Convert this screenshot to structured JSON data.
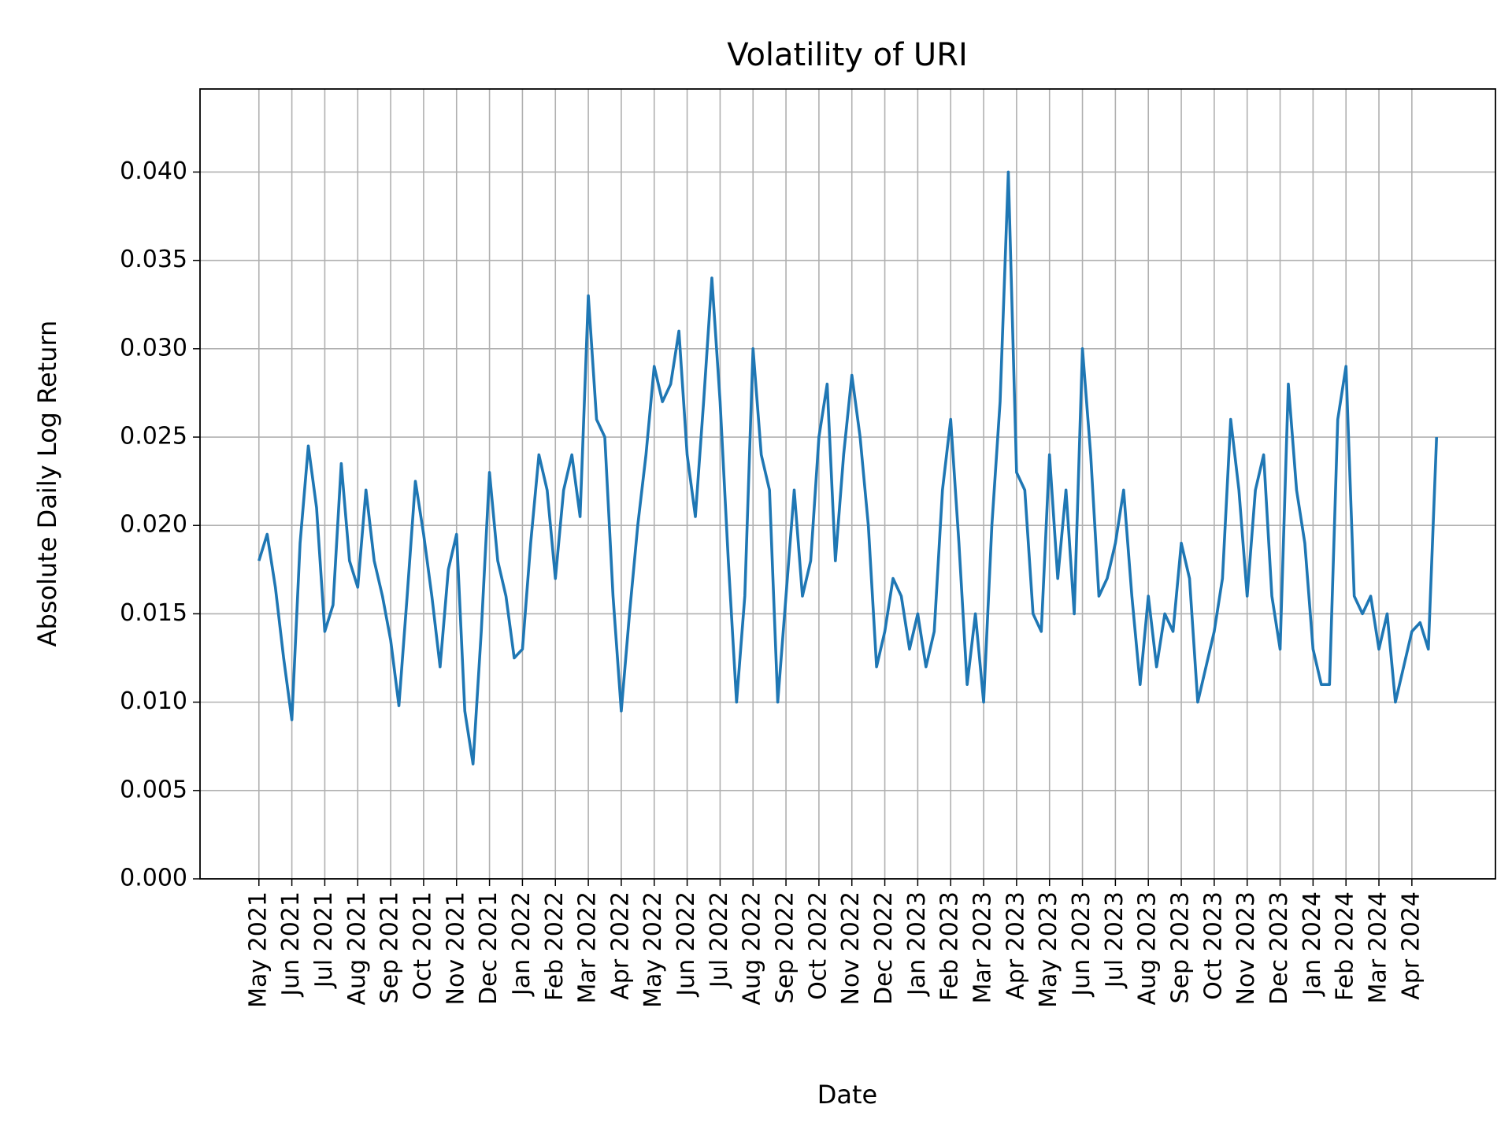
{
  "chart_data": {
    "type": "line",
    "title": "Volatility of URI",
    "x_label": "Date",
    "y_label": "Absolute Daily Log Return",
    "grid": true,
    "ylim": [
      0,
      0.0447
    ],
    "yticks": [
      {
        "value": 0,
        "label": "0.000"
      },
      {
        "value": 0.005,
        "label": "0.005"
      },
      {
        "value": 0.01,
        "label": "0.010"
      },
      {
        "value": 0.015,
        "label": "0.015"
      },
      {
        "value": 0.02,
        "label": "0.020"
      },
      {
        "value": 0.025,
        "label": "0.025"
      },
      {
        "value": 0.03,
        "label": "0.030"
      },
      {
        "value": 0.035,
        "label": "0.035"
      },
      {
        "value": 0.04,
        "label": "0.040"
      }
    ],
    "xticks": [
      {
        "value": "2021-05",
        "label": "May 2021"
      },
      {
        "value": "2021-06",
        "label": "Jun 2021"
      },
      {
        "value": "2021-07",
        "label": "Jul 2021"
      },
      {
        "value": "2021-08",
        "label": "Aug 2021"
      },
      {
        "value": "2021-09",
        "label": "Sep 2021"
      },
      {
        "value": "2021-10",
        "label": "Oct 2021"
      },
      {
        "value": "2021-11",
        "label": "Nov 2021"
      },
      {
        "value": "2021-12",
        "label": "Dec 2021"
      },
      {
        "value": "2022-01",
        "label": "Jan 2022"
      },
      {
        "value": "2022-02",
        "label": "Feb 2022"
      },
      {
        "value": "2022-03",
        "label": "Mar 2022"
      },
      {
        "value": "2022-04",
        "label": "Apr 2022"
      },
      {
        "value": "2022-05",
        "label": "May 2022"
      },
      {
        "value": "2022-06",
        "label": "Jun 2022"
      },
      {
        "value": "2022-07",
        "label": "Jul 2022"
      },
      {
        "value": "2022-08",
        "label": "Aug 2022"
      },
      {
        "value": "2022-09",
        "label": "Sep 2022"
      },
      {
        "value": "2022-10",
        "label": "Oct 2022"
      },
      {
        "value": "2022-11",
        "label": "Nov 2022"
      },
      {
        "value": "2022-12",
        "label": "Dec 2022"
      },
      {
        "value": "2023-01",
        "label": "Jan 2023"
      },
      {
        "value": "2023-02",
        "label": "Feb 2023"
      },
      {
        "value": "2023-03",
        "label": "Mar 2023"
      },
      {
        "value": "2023-04",
        "label": "Apr 2023"
      },
      {
        "value": "2023-05",
        "label": "May 2023"
      },
      {
        "value": "2023-06",
        "label": "Jun 2023"
      },
      {
        "value": "2023-07",
        "label": "Jul 2023"
      },
      {
        "value": "2023-08",
        "label": "Aug 2023"
      },
      {
        "value": "2023-09",
        "label": "Sep 2023"
      },
      {
        "value": "2023-10",
        "label": "Oct 2023"
      },
      {
        "value": "2023-11",
        "label": "Nov 2023"
      },
      {
        "value": "2023-12",
        "label": "Dec 2023"
      },
      {
        "value": "2024-01",
        "label": "Jan 2024"
      },
      {
        "value": "2024-02",
        "label": "Feb 2024"
      },
      {
        "value": "2024-03",
        "label": "Mar 2024"
      },
      {
        "value": "2024-04",
        "label": "Apr 2024"
      }
    ],
    "x": [
      "2021-05",
      "2021-05",
      "2021-05",
      "2021-05",
      "2021-06",
      "2021-06",
      "2021-06",
      "2021-06",
      "2021-07",
      "2021-07",
      "2021-07",
      "2021-07",
      "2021-08",
      "2021-08",
      "2021-08",
      "2021-08",
      "2021-09",
      "2021-09",
      "2021-09",
      "2021-09",
      "2021-10",
      "2021-10",
      "2021-10",
      "2021-10",
      "2021-11",
      "2021-11",
      "2021-11",
      "2021-11",
      "2021-12",
      "2021-12",
      "2021-12",
      "2021-12",
      "2022-01",
      "2022-01",
      "2022-01",
      "2022-01",
      "2022-02",
      "2022-02",
      "2022-02",
      "2022-02",
      "2022-03",
      "2022-03",
      "2022-03",
      "2022-03",
      "2022-04",
      "2022-04",
      "2022-04",
      "2022-04",
      "2022-05",
      "2022-05",
      "2022-05",
      "2022-05",
      "2022-06",
      "2022-06",
      "2022-06",
      "2022-06",
      "2022-07",
      "2022-07",
      "2022-07",
      "2022-07",
      "2022-08",
      "2022-08",
      "2022-08",
      "2022-08",
      "2022-09",
      "2022-09",
      "2022-09",
      "2022-09",
      "2022-10",
      "2022-10",
      "2022-10",
      "2022-10",
      "2022-11",
      "2022-11",
      "2022-11",
      "2022-11",
      "2022-12",
      "2022-12",
      "2022-12",
      "2022-12",
      "2023-01",
      "2023-01",
      "2023-01",
      "2023-01",
      "2023-02",
      "2023-02",
      "2023-02",
      "2023-02",
      "2023-03",
      "2023-03",
      "2023-03",
      "2023-03",
      "2023-04",
      "2023-04",
      "2023-04",
      "2023-04",
      "2023-05",
      "2023-05",
      "2023-05",
      "2023-05",
      "2023-06",
      "2023-06",
      "2023-06",
      "2023-06",
      "2023-07",
      "2023-07",
      "2023-07",
      "2023-07",
      "2023-08",
      "2023-08",
      "2023-08",
      "2023-08",
      "2023-09",
      "2023-09",
      "2023-09",
      "2023-09",
      "2023-10",
      "2023-10",
      "2023-10",
      "2023-10",
      "2023-11",
      "2023-11",
      "2023-11",
      "2023-11",
      "2023-12",
      "2023-12",
      "2023-12",
      "2023-12",
      "2024-01",
      "2024-01",
      "2024-01",
      "2024-01",
      "2024-02",
      "2024-02",
      "2024-02",
      "2024-02",
      "2024-03",
      "2024-03",
      "2024-03",
      "2024-03",
      "2024-04",
      "2024-04",
      "2024-04",
      "2024-04"
    ],
    "series": [
      {
        "name": "URI",
        "color": "#1f77b4",
        "values": [
          0.018,
          0.0195,
          0.0165,
          0.0125,
          0.009,
          0.019,
          0.0245,
          0.021,
          0.014,
          0.0155,
          0.0235,
          0.018,
          0.0165,
          0.022,
          0.018,
          0.016,
          0.0135,
          0.0098,
          0.016,
          0.0225,
          0.0195,
          0.016,
          0.012,
          0.0175,
          0.0195,
          0.0095,
          0.0065,
          0.014,
          0.023,
          0.018,
          0.016,
          0.0125,
          0.013,
          0.019,
          0.024,
          0.022,
          0.017,
          0.022,
          0.024,
          0.0205,
          0.033,
          0.026,
          0.025,
          0.016,
          0.0095,
          0.015,
          0.02,
          0.024,
          0.029,
          0.027,
          0.028,
          0.031,
          0.024,
          0.0205,
          0.027,
          0.034,
          0.027,
          0.018,
          0.01,
          0.016,
          0.03,
          0.024,
          0.022,
          0.01,
          0.016,
          0.022,
          0.016,
          0.018,
          0.025,
          0.028,
          0.018,
          0.024,
          0.0285,
          0.025,
          0.02,
          0.012,
          0.014,
          0.017,
          0.016,
          0.013,
          0.015,
          0.012,
          0.014,
          0.022,
          0.026,
          0.019,
          0.011,
          0.015,
          0.01,
          0.02,
          0.027,
          0.04,
          0.023,
          0.022,
          0.015,
          0.014,
          0.024,
          0.017,
          0.022,
          0.015,
          0.03,
          0.024,
          0.016,
          0.017,
          0.019,
          0.022,
          0.016,
          0.011,
          0.016,
          0.012,
          0.015,
          0.014,
          0.019,
          0.017,
          0.01,
          0.012,
          0.014,
          0.017,
          0.026,
          0.022,
          0.016,
          0.022,
          0.024,
          0.016,
          0.013,
          0.028,
          0.022,
          0.019,
          0.013,
          0.011,
          0.011,
          0.026,
          0.029,
          0.016,
          0.015,
          0.016,
          0.013,
          0.015,
          0.01,
          0.012,
          0.014,
          0.0145,
          0.013,
          0.025
        ]
      }
    ]
  }
}
